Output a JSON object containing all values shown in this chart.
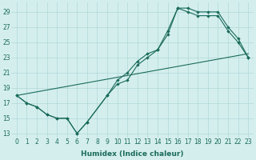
{
  "xlabel": "Humidex (Indice chaleur)",
  "background_color": "#d4eeee",
  "grid_color": "#b0d8d8",
  "line_color": "#1a6b5a",
  "series": [
    {
      "x": [
        0,
        1,
        2,
        3,
        4,
        5,
        6,
        7,
        9,
        10,
        11,
        12,
        13,
        14,
        15,
        16,
        17,
        18,
        19,
        20,
        21,
        22,
        23
      ],
      "y": [
        18,
        17,
        16.5,
        15.5,
        15,
        15,
        13,
        14.5,
        18,
        20,
        21,
        22.5,
        23.5,
        24,
        26,
        29.5,
        29.5,
        29,
        29,
        29,
        27,
        25.5,
        23
      ]
    },
    {
      "x": [
        0,
        1,
        2,
        3,
        4,
        5,
        6,
        7,
        9,
        10,
        11,
        12,
        13,
        14,
        15,
        16,
        17,
        18,
        19,
        20,
        21,
        22,
        23
      ],
      "y": [
        18,
        17,
        16.5,
        15.5,
        15,
        15,
        13,
        14.5,
        18,
        19.5,
        20,
        22,
        23,
        24,
        26.5,
        29.5,
        29,
        28.5,
        28.5,
        28.5,
        26.5,
        25,
        23
      ]
    },
    {
      "x": [
        0,
        23
      ],
      "y": [
        18,
        23.5
      ]
    }
  ],
  "ylim": [
    12.5,
    30.2
  ],
  "xlim": [
    -0.5,
    23.5
  ],
  "yticks": [
    13,
    15,
    17,
    19,
    21,
    23,
    25,
    27,
    29
  ],
  "xticks": [
    0,
    1,
    2,
    3,
    4,
    5,
    6,
    7,
    8,
    9,
    10,
    11,
    12,
    13,
    14,
    15,
    16,
    17,
    18,
    19,
    20,
    21,
    22,
    23
  ],
  "xtick_labels": [
    "0",
    "1",
    "2",
    "3",
    "4",
    "5",
    "6",
    "7",
    "8",
    "9",
    "10",
    "11",
    "12",
    "13",
    "14",
    "15",
    "16",
    "17",
    "18",
    "19",
    "20",
    "21",
    "22",
    "23"
  ],
  "fontsize_ticks": 5.5,
  "fontsize_xlabel": 6.5,
  "marker_size": 2.2,
  "line_width": 0.8
}
